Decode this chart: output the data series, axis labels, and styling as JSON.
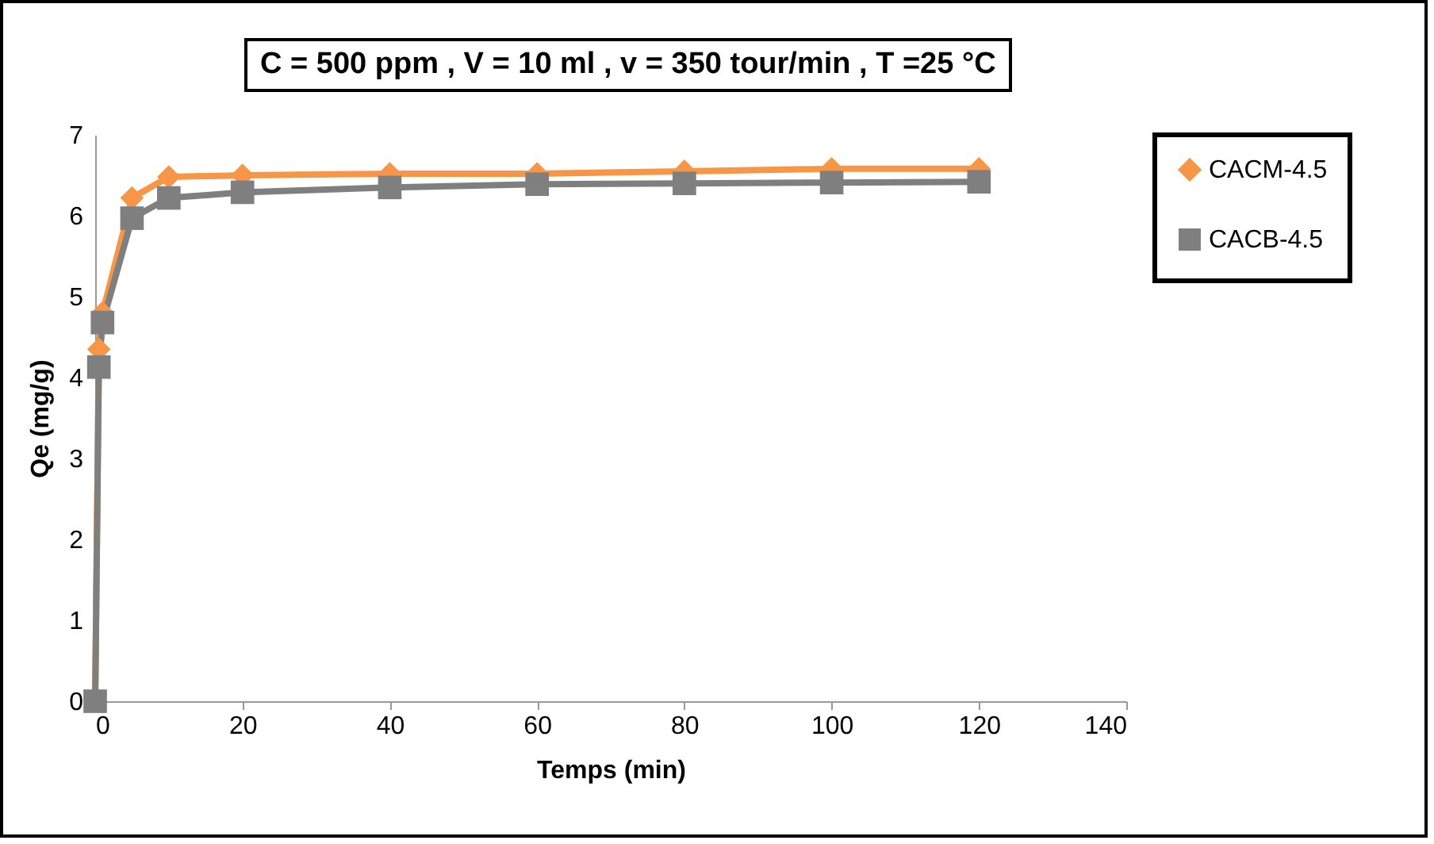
{
  "chart_data": {
    "type": "line",
    "title": "C = 500 ppm , V = 10 ml , v = 350 tour/min , T =25 °C",
    "xlabel": "Temps (min)",
    "ylabel": "Qe (mg/g)",
    "x": [
      0,
      0.5,
      1,
      5,
      10,
      20,
      40,
      60,
      80,
      100,
      120
    ],
    "series": [
      {
        "name": "CACM-4.5",
        "color": "#f79646",
        "marker": "diamond",
        "values": [
          0,
          4.35,
          4.8,
          6.22,
          6.48,
          6.5,
          6.52,
          6.52,
          6.55,
          6.58,
          6.58
        ]
      },
      {
        "name": "CACB-4.5",
        "color": "#7f7f7f",
        "marker": "square",
        "values": [
          0,
          4.13,
          4.68,
          5.97,
          6.22,
          6.29,
          6.35,
          6.39,
          6.4,
          6.41,
          6.42
        ]
      }
    ],
    "xlim": [
      0,
      140
    ],
    "xticks": [
      0,
      20,
      40,
      60,
      80,
      100,
      120,
      140
    ],
    "ylim": [
      0,
      7
    ],
    "yticks": [
      0,
      1,
      2,
      3,
      4,
      5,
      6,
      7
    ],
    "grid": false,
    "legend": "right",
    "line_style": "solid"
  }
}
